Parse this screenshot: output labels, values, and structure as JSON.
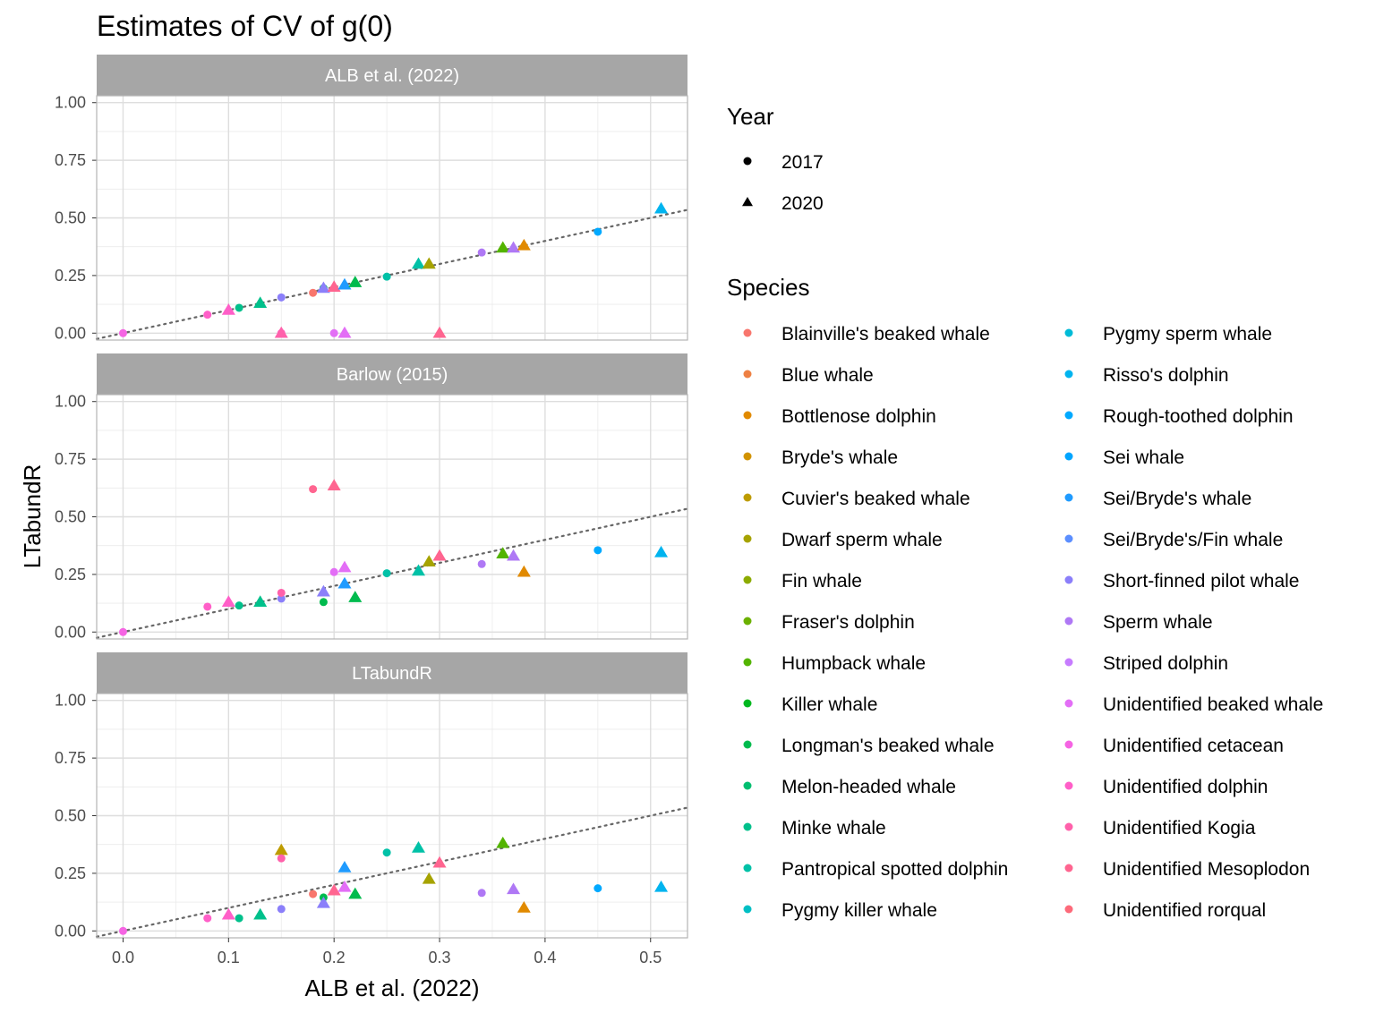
{
  "chart_data": {
    "type": "scatter",
    "title": "Estimates of CV of g(0)",
    "xlabel": "ALB et al. (2022)",
    "ylabel": "LTabundR",
    "xlim": [
      -0.025,
      0.535
    ],
    "ylim": [
      -0.03,
      1.03
    ],
    "x_ticks": [
      0.0,
      0.1,
      0.2,
      0.3,
      0.4,
      0.5
    ],
    "x_tick_labels": [
      "0.0",
      "0.1",
      "0.2",
      "0.3",
      "0.4",
      "0.5"
    ],
    "y_ticks": [
      0.0,
      0.25,
      0.5,
      0.75,
      1.0
    ],
    "y_tick_labels": [
      "0.00",
      "0.25",
      "0.50",
      "0.75",
      "1.00"
    ],
    "grid": true,
    "reference_line": "y = x (dotted)",
    "panels": [
      "ALB et al. (2022)",
      "Barlow (2015)",
      "LTabundR"
    ],
    "shape_legend": {
      "title": "Year",
      "entries": [
        {
          "label": "2017",
          "shape": "circle"
        },
        {
          "label": "2020",
          "shape": "triangle"
        }
      ]
    },
    "color_legend": {
      "title": "Species",
      "entries": [
        {
          "label": "Blainville's beaked whale",
          "color": "#F8766D"
        },
        {
          "label": "Blue whale",
          "color": "#EE8043"
        },
        {
          "label": "Bottlenose dolphin",
          "color": "#E18A00"
        },
        {
          "label": "Bryde's whale",
          "color": "#D29300"
        },
        {
          "label": "Cuvier's beaked whale",
          "color": "#BE9C00"
        },
        {
          "label": "Dwarf sperm whale",
          "color": "#A6A300"
        },
        {
          "label": "Fin whale",
          "color": "#8CAB00"
        },
        {
          "label": "Fraser's dolphin",
          "color": "#6BB100"
        },
        {
          "label": "Humpback whale",
          "color": "#53B400"
        },
        {
          "label": "Killer whale",
          "color": "#00B81F"
        },
        {
          "label": "Longman's beaked whale",
          "color": "#00BB4E"
        },
        {
          "label": "Melon-headed whale",
          "color": "#00BE70"
        },
        {
          "label": "Minke whale",
          "color": "#00C08B"
        },
        {
          "label": "Pantropical spotted dolphin",
          "color": "#00C1A7"
        },
        {
          "label": "Pygmy killer whale",
          "color": "#00BFC4"
        },
        {
          "label": "Pygmy sperm whale",
          "color": "#00BBD7"
        },
        {
          "label": "Risso's dolphin",
          "color": "#00B4EF"
        },
        {
          "label": "Rough-toothed dolphin",
          "color": "#00A9FF"
        },
        {
          "label": "Sei whale",
          "color": "#00A5FF"
        },
        {
          "label": "Sei/Bryde's whale",
          "color": "#1F9BFF"
        },
        {
          "label": "Sei/Bryde's/Fin whale",
          "color": "#5C8FFF"
        },
        {
          "label": "Short-finned pilot whale",
          "color": "#8B7FFA"
        },
        {
          "label": "Sperm whale",
          "color": "#AF78F5"
        },
        {
          "label": "Striped dolphin",
          "color": "#C77CFF"
        },
        {
          "label": "Unidentified beaked whale",
          "color": "#E36EF6"
        },
        {
          "label": "Unidentified cetacean",
          "color": "#F564E3"
        },
        {
          "label": "Unidentified dolphin",
          "color": "#FF5FC8"
        },
        {
          "label": "Unidentified Kogia",
          "color": "#FF61AB"
        },
        {
          "label": "Unidentified Mesoplodon",
          "color": "#FF6590"
        },
        {
          "label": "Unidentified rorqual",
          "color": "#FD6A7A"
        }
      ]
    },
    "series": [
      {
        "panel": "ALB et al. (2022)",
        "points": [
          {
            "x": 0.0,
            "y": 0.0,
            "year": "2017",
            "color": "#F564E3"
          },
          {
            "x": 0.08,
            "y": 0.08,
            "year": "2017",
            "color": "#FF5FC8"
          },
          {
            "x": 0.1,
            "y": 0.1,
            "year": "2020",
            "color": "#FF5FC8"
          },
          {
            "x": 0.11,
            "y": 0.11,
            "year": "2017",
            "color": "#00C08B"
          },
          {
            "x": 0.13,
            "y": 0.13,
            "year": "2020",
            "color": "#00C08B"
          },
          {
            "x": 0.15,
            "y": 0.155,
            "year": "2017",
            "color": "#8B7FFA"
          },
          {
            "x": 0.15,
            "y": 0.0,
            "year": "2017",
            "color": "#FF5FC8"
          },
          {
            "x": 0.15,
            "y": 0.0,
            "year": "2020",
            "color": "#FF61AB"
          },
          {
            "x": 0.18,
            "y": 0.175,
            "year": "2017",
            "color": "#F8766D"
          },
          {
            "x": 0.19,
            "y": 0.195,
            "year": "2017",
            "color": "#00BB4E"
          },
          {
            "x": 0.19,
            "y": 0.195,
            "year": "2020",
            "color": "#8B7FFA"
          },
          {
            "x": 0.2,
            "y": 0.2,
            "year": "2020",
            "color": "#FF6590"
          },
          {
            "x": 0.2,
            "y": 0.0,
            "year": "2017",
            "color": "#E36EF6"
          },
          {
            "x": 0.21,
            "y": 0.0,
            "year": "2020",
            "color": "#E36EF6"
          },
          {
            "x": 0.21,
            "y": 0.21,
            "year": "2020",
            "color": "#1F9BFF"
          },
          {
            "x": 0.22,
            "y": 0.22,
            "year": "2020",
            "color": "#00BB4E"
          },
          {
            "x": 0.25,
            "y": 0.245,
            "year": "2017",
            "color": "#00C1A7"
          },
          {
            "x": 0.28,
            "y": 0.3,
            "year": "2020",
            "color": "#00C1A7"
          },
          {
            "x": 0.29,
            "y": 0.3,
            "year": "2020",
            "color": "#A6A300"
          },
          {
            "x": 0.3,
            "y": 0.0,
            "year": "2020",
            "color": "#FF6590"
          },
          {
            "x": 0.34,
            "y": 0.35,
            "year": "2017",
            "color": "#AF78F5"
          },
          {
            "x": 0.36,
            "y": 0.37,
            "year": "2020",
            "color": "#53B400"
          },
          {
            "x": 0.37,
            "y": 0.37,
            "year": "2020",
            "color": "#AF78F5"
          },
          {
            "x": 0.38,
            "y": 0.38,
            "year": "2020",
            "color": "#E18A00"
          },
          {
            "x": 0.45,
            "y": 0.44,
            "year": "2017",
            "color": "#00A9FF"
          },
          {
            "x": 0.51,
            "y": 0.54,
            "year": "2020",
            "color": "#00B4EF"
          }
        ]
      },
      {
        "panel": "Barlow (2015)",
        "points": [
          {
            "x": 0.0,
            "y": 0.0,
            "year": "2017",
            "color": "#F564E3"
          },
          {
            "x": 0.08,
            "y": 0.11,
            "year": "2017",
            "color": "#FF5FC8"
          },
          {
            "x": 0.1,
            "y": 0.13,
            "year": "2020",
            "color": "#FF5FC8"
          },
          {
            "x": 0.11,
            "y": 0.115,
            "year": "2017",
            "color": "#00C08B"
          },
          {
            "x": 0.13,
            "y": 0.13,
            "year": "2020",
            "color": "#00C08B"
          },
          {
            "x": 0.15,
            "y": 0.145,
            "year": "2017",
            "color": "#8B7FFA"
          },
          {
            "x": 0.15,
            "y": 0.17,
            "year": "2017",
            "color": "#FF61AB"
          },
          {
            "x": 0.18,
            "y": 0.62,
            "year": "2017",
            "color": "#FF6590"
          },
          {
            "x": 0.19,
            "y": 0.13,
            "year": "2017",
            "color": "#00BB4E"
          },
          {
            "x": 0.19,
            "y": 0.175,
            "year": "2020",
            "color": "#8B7FFA"
          },
          {
            "x": 0.2,
            "y": 0.635,
            "year": "2020",
            "color": "#FF6590"
          },
          {
            "x": 0.2,
            "y": 0.26,
            "year": "2017",
            "color": "#E36EF6"
          },
          {
            "x": 0.21,
            "y": 0.28,
            "year": "2020",
            "color": "#E36EF6"
          },
          {
            "x": 0.21,
            "y": 0.21,
            "year": "2020",
            "color": "#1F9BFF"
          },
          {
            "x": 0.22,
            "y": 0.15,
            "year": "2020",
            "color": "#00BB4E"
          },
          {
            "x": 0.25,
            "y": 0.255,
            "year": "2017",
            "color": "#00C1A7"
          },
          {
            "x": 0.28,
            "y": 0.265,
            "year": "2020",
            "color": "#00C1A7"
          },
          {
            "x": 0.29,
            "y": 0.305,
            "year": "2020",
            "color": "#A6A300"
          },
          {
            "x": 0.3,
            "y": 0.33,
            "year": "2020",
            "color": "#FF6590"
          },
          {
            "x": 0.34,
            "y": 0.295,
            "year": "2017",
            "color": "#AF78F5"
          },
          {
            "x": 0.36,
            "y": 0.34,
            "year": "2020",
            "color": "#53B400"
          },
          {
            "x": 0.37,
            "y": 0.33,
            "year": "2020",
            "color": "#AF78F5"
          },
          {
            "x": 0.38,
            "y": 0.26,
            "year": "2020",
            "color": "#E18A00"
          },
          {
            "x": 0.45,
            "y": 0.355,
            "year": "2017",
            "color": "#00A9FF"
          },
          {
            "x": 0.51,
            "y": 0.345,
            "year": "2020",
            "color": "#00B4EF"
          }
        ]
      },
      {
        "panel": "LTabundR",
        "points": [
          {
            "x": 0.0,
            "y": 0.0,
            "year": "2017",
            "color": "#F564E3"
          },
          {
            "x": 0.08,
            "y": 0.055,
            "year": "2017",
            "color": "#FF5FC8"
          },
          {
            "x": 0.1,
            "y": 0.07,
            "year": "2020",
            "color": "#FF5FC8"
          },
          {
            "x": 0.11,
            "y": 0.055,
            "year": "2017",
            "color": "#00C08B"
          },
          {
            "x": 0.13,
            "y": 0.07,
            "year": "2020",
            "color": "#00C08B"
          },
          {
            "x": 0.15,
            "y": 0.095,
            "year": "2017",
            "color": "#8B7FFA"
          },
          {
            "x": 0.15,
            "y": 0.35,
            "year": "2020",
            "color": "#BE9C00"
          },
          {
            "x": 0.15,
            "y": 0.315,
            "year": "2017",
            "color": "#FF61AB"
          },
          {
            "x": 0.18,
            "y": 0.16,
            "year": "2017",
            "color": "#F8766D"
          },
          {
            "x": 0.19,
            "y": 0.145,
            "year": "2017",
            "color": "#00BB4E"
          },
          {
            "x": 0.19,
            "y": 0.12,
            "year": "2020",
            "color": "#8B7FFA"
          },
          {
            "x": 0.2,
            "y": 0.175,
            "year": "2020",
            "color": "#FF6590"
          },
          {
            "x": 0.21,
            "y": 0.19,
            "year": "2020",
            "color": "#E36EF6"
          },
          {
            "x": 0.21,
            "y": 0.275,
            "year": "2020",
            "color": "#1F9BFF"
          },
          {
            "x": 0.22,
            "y": 0.16,
            "year": "2020",
            "color": "#00BB4E"
          },
          {
            "x": 0.25,
            "y": 0.34,
            "year": "2017",
            "color": "#00C1A7"
          },
          {
            "x": 0.28,
            "y": 0.36,
            "year": "2020",
            "color": "#00C1A7"
          },
          {
            "x": 0.29,
            "y": 0.225,
            "year": "2020",
            "color": "#A6A300"
          },
          {
            "x": 0.3,
            "y": 0.295,
            "year": "2020",
            "color": "#FF6590"
          },
          {
            "x": 0.34,
            "y": 0.165,
            "year": "2017",
            "color": "#AF78F5"
          },
          {
            "x": 0.36,
            "y": 0.38,
            "year": "2020",
            "color": "#53B400"
          },
          {
            "x": 0.37,
            "y": 0.18,
            "year": "2020",
            "color": "#AF78F5"
          },
          {
            "x": 0.38,
            "y": 0.1,
            "year": "2020",
            "color": "#E18A00"
          },
          {
            "x": 0.45,
            "y": 0.185,
            "year": "2017",
            "color": "#00A9FF"
          },
          {
            "x": 0.51,
            "y": 0.19,
            "year": "2020",
            "color": "#00B4EF"
          }
        ]
      }
    ]
  }
}
